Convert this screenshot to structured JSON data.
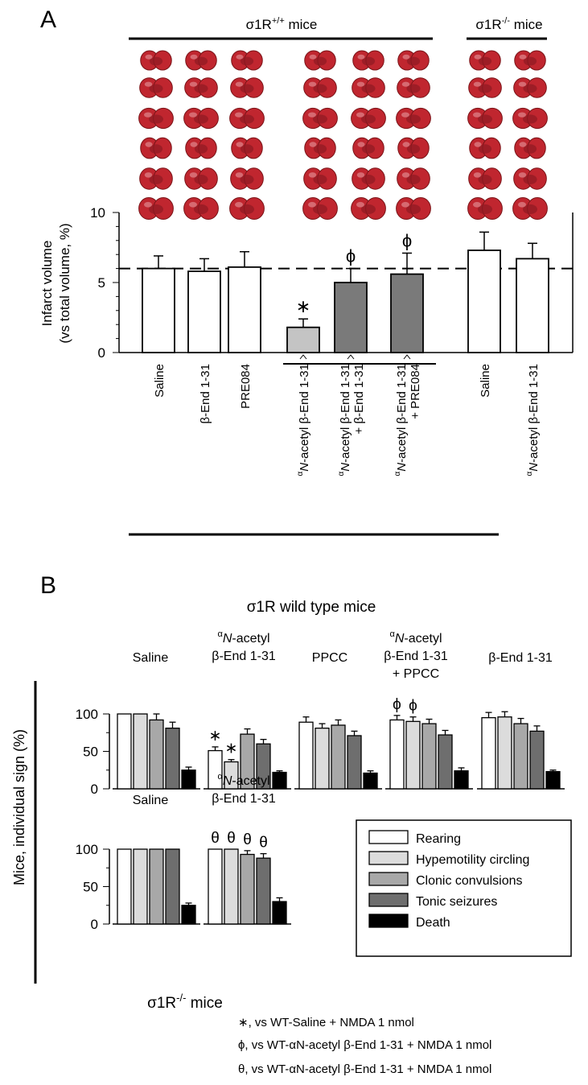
{
  "panelA": {
    "letter": "A",
    "group_wt": "σ1R+/+ mice",
    "group_wt_base": "σ1R",
    "group_wt_sup": "+/+",
    "group_wt_rest": " mice",
    "group_ko": "σ1R-/- mice",
    "group_ko_base": "σ1R",
    "group_ko_sup": "-/-",
    "group_ko_rest": " mice",
    "ylabel_line1": "Infarct volume",
    "ylabel_line2": "(vs total volume, %)"
  },
  "panelB": {
    "letter": "B",
    "title": "σ1R wild type mice",
    "ylabel": "Mice, individual sign (%)",
    "ko_label": "σ1R-/- mice",
    "ko_label_base": "σ1R",
    "ko_label_sup": "-/-",
    "ko_label_rest": " mice"
  },
  "footnotes": [
    {
      "symbol": "∗",
      "text": ", vs WT-Saline + NMDA 1 nmol"
    },
    {
      "symbol": "ϕ",
      "text": ", vs WT-αN-acetyl β-End 1-31 + NMDA 1 nmol"
    },
    {
      "symbol": "θ",
      "text": ", vs WT-αN-acetyl β-End 1-31 + NMDA 1 nmol"
    }
  ],
  "colors": {
    "rearing": "#ffffff",
    "hypermotility": "#dcdcdc",
    "clonic": "#a8a8a8",
    "tonic": "#6e6e6e",
    "death": "#000000",
    "bar_light": "#c4c4c4",
    "bar_dark": "#7a7a7a",
    "brain_red": "#c0262f"
  },
  "chart_data": [
    {
      "type": "bar",
      "panel": "A",
      "ylabel": "Infarct volume (vs total volume, %)",
      "ylim": [
        0,
        10
      ],
      "yticks": [
        0,
        5,
        10
      ],
      "reference_line": 6,
      "categories": [
        "Saline",
        "β-End 1-31",
        "PRE084",
        "αN-acetyl β-End 1-31",
        "αN-acetyl β-End 1-31 + β-End 1-31",
        "αN-acetyl β-End 1-31 + PRE084",
        "Saline",
        "αN-acetyl β-End 1-31"
      ],
      "groups": [
        "σ1R+/+",
        "σ1R+/+",
        "σ1R+/+",
        "σ1R+/+",
        "σ1R+/+",
        "σ1R+/+",
        "σ1R-/-",
        "σ1R-/-"
      ],
      "values": [
        6.0,
        5.8,
        6.1,
        1.8,
        5.0,
        5.6,
        7.3,
        6.7
      ],
      "errors": [
        0.9,
        0.9,
        1.1,
        0.6,
        1.0,
        1.5,
        1.3,
        1.1
      ],
      "markers": [
        "",
        "",
        "",
        "∗",
        "ϕ",
        "ϕ",
        "",
        ""
      ]
    },
    {
      "type": "bar",
      "panel": "B-top",
      "title": "σ1R wild type mice",
      "ylabel": "Mice, individual sign (%)",
      "ylim": [
        0,
        100
      ],
      "yticks": [
        0,
        50,
        100
      ],
      "legend_position": "right",
      "categories": [
        "Saline",
        "αN-acetyl β-End 1-31",
        "PPCC",
        "αN-acetyl β-End 1-31 + PPCC",
        "β-End 1-31"
      ],
      "series": [
        {
          "name": "Rearing",
          "values": [
            100,
            51,
            89,
            92,
            95
          ],
          "errors": [
            0,
            5,
            7,
            6,
            7
          ]
        },
        {
          "name": "Hypemotility circling",
          "values": [
            100,
            36,
            81,
            90,
            96
          ],
          "errors": [
            0,
            3,
            6,
            6,
            7
          ]
        },
        {
          "name": "Clonic convulsions",
          "values": [
            92,
            73,
            85,
            87,
            87
          ],
          "errors": [
            8,
            7,
            7,
            6,
            7
          ]
        },
        {
          "name": "Tonic seizures",
          "values": [
            81,
            60,
            71,
            72,
            77
          ],
          "errors": [
            8,
            6,
            6,
            6,
            7
          ]
        },
        {
          "name": "Death",
          "values": [
            25,
            22,
            21,
            24,
            23
          ],
          "errors": [
            4,
            2,
            3,
            4,
            2
          ]
        }
      ],
      "markers": [
        {
          "category": 1,
          "series": 0,
          "symbol": "∗"
        },
        {
          "category": 1,
          "series": 1,
          "symbol": "∗"
        },
        {
          "category": 3,
          "series": 0,
          "symbol": "ϕ"
        },
        {
          "category": 3,
          "series": 1,
          "symbol": "ϕ"
        }
      ]
    },
    {
      "type": "bar",
      "panel": "B-bottom",
      "ylabel": "Mice, individual sign (%)",
      "ylim": [
        0,
        100
      ],
      "yticks": [
        0,
        50,
        100
      ],
      "categories": [
        "Saline",
        "αN-acetyl β-End 1-31"
      ],
      "series": [
        {
          "name": "Rearing",
          "values": [
            100,
            100
          ],
          "errors": [
            0,
            0
          ]
        },
        {
          "name": "Hypemotility circling",
          "values": [
            100,
            100
          ],
          "errors": [
            0,
            0
          ]
        },
        {
          "name": "Clonic convulsions",
          "values": [
            100,
            93
          ],
          "errors": [
            0,
            5
          ]
        },
        {
          "name": "Tonic seizures",
          "values": [
            100,
            88
          ],
          "errors": [
            0,
            6
          ]
        },
        {
          "name": "Death",
          "values": [
            25,
            30
          ],
          "errors": [
            3,
            5
          ]
        }
      ],
      "markers": [
        {
          "category": 1,
          "series": 0,
          "symbol": "θ"
        },
        {
          "category": 1,
          "series": 1,
          "symbol": "θ"
        },
        {
          "category": 1,
          "series": 2,
          "symbol": "θ"
        },
        {
          "category": 1,
          "series": 3,
          "symbol": "θ"
        }
      ]
    }
  ]
}
